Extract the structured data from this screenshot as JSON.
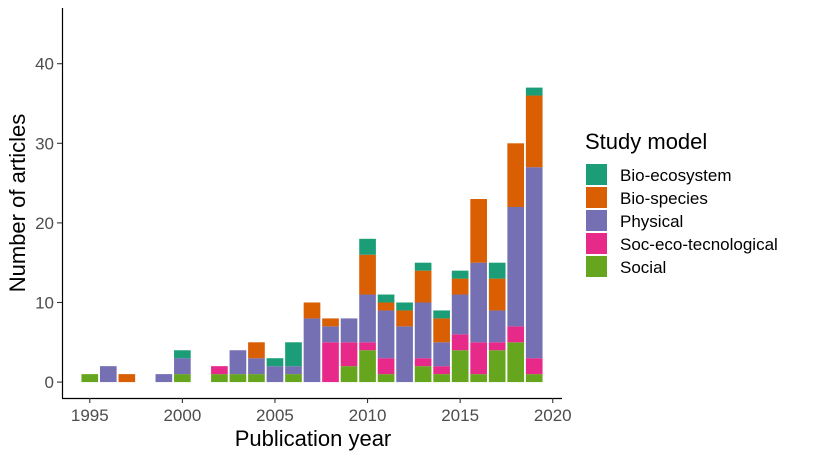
{
  "chart_data": {
    "type": "bar",
    "stacked": true,
    "xlabel": "Publication year",
    "ylabel": "Number of articles",
    "xlim": [
      1993.5,
      2020.5
    ],
    "ylim": [
      -2,
      47
    ],
    "xticks": [
      1995,
      2000,
      2005,
      2010,
      2015,
      2020
    ],
    "yticks": [
      0,
      10,
      20,
      30,
      40
    ],
    "grid": false,
    "legend": {
      "title": "Study model",
      "position": "right"
    },
    "x": [
      1995,
      1996,
      1997,
      1999,
      2000,
      2002,
      2003,
      2004,
      2005,
      2006,
      2007,
      2008,
      2009,
      2010,
      2011,
      2012,
      2013,
      2014,
      2015,
      2016,
      2017,
      2018,
      2019
    ],
    "series": [
      {
        "name": "Social",
        "color": "#66a61e",
        "values": [
          1,
          0,
          0,
          0,
          1,
          1,
          1,
          1,
          0,
          1,
          0,
          0,
          2,
          4,
          1,
          0,
          2,
          1,
          4,
          1,
          4,
          5,
          1
        ]
      },
      {
        "name": "Soc-eco-tecnological",
        "color": "#e7298a",
        "values": [
          0,
          0,
          0,
          0,
          0,
          1,
          0,
          0,
          0,
          0,
          0,
          5,
          3,
          1,
          2,
          0,
          1,
          1,
          2,
          4,
          1,
          2,
          2
        ]
      },
      {
        "name": "Physical",
        "color": "#7570b3",
        "values": [
          0,
          2,
          0,
          1,
          2,
          0,
          3,
          2,
          2,
          1,
          8,
          2,
          3,
          6,
          6,
          7,
          7,
          3,
          5,
          10,
          4,
          15,
          24
        ]
      },
      {
        "name": "Bio-species",
        "color": "#d95f02",
        "values": [
          0,
          0,
          1,
          0,
          0,
          0,
          0,
          2,
          0,
          0,
          2,
          1,
          0,
          5,
          1,
          2,
          4,
          3,
          2,
          8,
          4,
          8,
          9
        ]
      },
      {
        "name": "Bio-ecosystem",
        "color": "#1b9e77",
        "values": [
          0,
          0,
          0,
          0,
          1,
          0,
          0,
          0,
          1,
          3,
          0,
          0,
          0,
          2,
          1,
          1,
          1,
          1,
          1,
          0,
          2,
          0,
          1
        ]
      }
    ],
    "legend_order": [
      "Bio-ecosystem",
      "Bio-species",
      "Physical",
      "Soc-eco-tecnological",
      "Social"
    ]
  }
}
